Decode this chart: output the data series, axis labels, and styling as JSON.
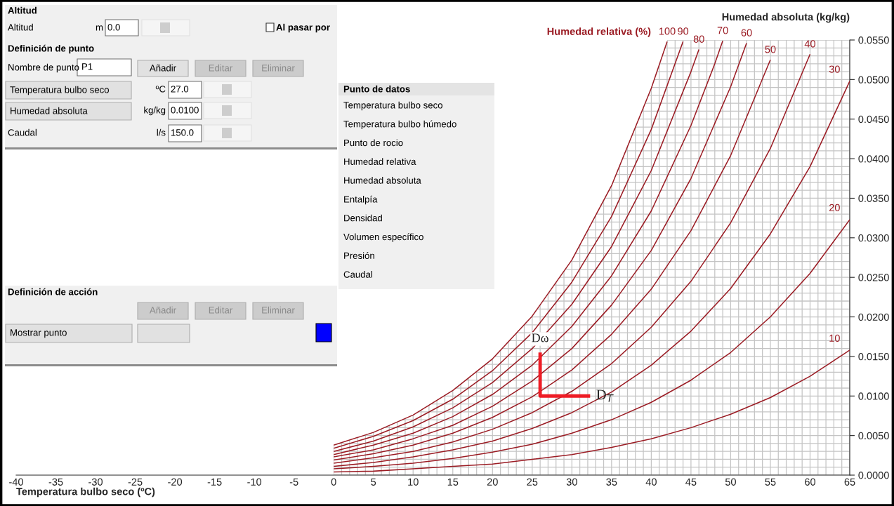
{
  "chart_data": {
    "type": "line",
    "xlabel": "Temperatura bulbo seco (ºC)",
    "ylabel": "Humedad absoluta (kg/kg)",
    "xlim": [
      -40,
      65
    ],
    "xticks": [
      -40,
      -35,
      -30,
      -25,
      -20,
      -15,
      -10,
      -5,
      0,
      5,
      10,
      15,
      20,
      25,
      30,
      35,
      40,
      45,
      50,
      55,
      60,
      65
    ],
    "ylim": [
      0,
      0.055
    ],
    "yticks": [
      {
        "value": 0,
        "label": "0.0000"
      },
      {
        "value": 0.005,
        "label": "0.0050"
      },
      {
        "value": 0.01,
        "label": "0.0100"
      },
      {
        "value": 0.015,
        "label": "0.0150"
      },
      {
        "value": 0.02,
        "label": "0.0200"
      },
      {
        "value": 0.025,
        "label": "0.0250"
      },
      {
        "value": 0.03,
        "label": "0.0300"
      },
      {
        "value": 0.035,
        "label": "0.0350"
      },
      {
        "value": 0.04,
        "label": "0.0400"
      },
      {
        "value": 0.045,
        "label": "0.0450"
      },
      {
        "value": 0.05,
        "label": "0.0500"
      },
      {
        "value": 0.055,
        "label": "0.0550"
      }
    ],
    "grid": true,
    "series": [
      {
        "name": "100",
        "color": "#9b1c24",
        "x": [
          0,
          5,
          10,
          15,
          20,
          25,
          30,
          35,
          40,
          42
        ],
        "values": [
          0.0038,
          0.0054,
          0.0076,
          0.0107,
          0.0147,
          0.0201,
          0.0272,
          0.0366,
          0.0489,
          0.0548
        ]
      },
      {
        "name": "90",
        "color": "#9b1c24",
        "x": [
          0,
          5,
          10,
          15,
          20,
          25,
          30,
          35,
          40,
          44
        ],
        "values": [
          0.0034,
          0.0049,
          0.0069,
          0.0096,
          0.0132,
          0.018,
          0.0244,
          0.0327,
          0.0437,
          0.0548
        ]
      },
      {
        "name": "80",
        "color": "#9b1c24",
        "x": [
          0,
          5,
          10,
          15,
          20,
          25,
          30,
          35,
          40,
          45,
          46
        ],
        "values": [
          0.003,
          0.0043,
          0.0061,
          0.0085,
          0.0117,
          0.016,
          0.0216,
          0.0289,
          0.0385,
          0.051,
          0.0538
        ]
      },
      {
        "name": "70",
        "color": "#9b1c24",
        "x": [
          0,
          5,
          10,
          15,
          20,
          25,
          30,
          35,
          40,
          45,
          48,
          49
        ],
        "values": [
          0.0026,
          0.0038,
          0.0053,
          0.0074,
          0.0102,
          0.0139,
          0.0188,
          0.0252,
          0.0334,
          0.0442,
          0.052,
          0.0549
        ]
      },
      {
        "name": "60",
        "color": "#9b1c24",
        "x": [
          0,
          5,
          10,
          15,
          20,
          25,
          30,
          35,
          40,
          45,
          50,
          52
        ],
        "values": [
          0.0023,
          0.0032,
          0.0046,
          0.0063,
          0.0087,
          0.0119,
          0.016,
          0.0215,
          0.0284,
          0.0375,
          0.0491,
          0.0546
        ]
      },
      {
        "name": "50",
        "color": "#9b1c24",
        "x": [
          0,
          5,
          10,
          15,
          20,
          25,
          30,
          35,
          40,
          45,
          50,
          55
        ],
        "values": [
          0.0019,
          0.0027,
          0.0038,
          0.0053,
          0.0073,
          0.0099,
          0.0133,
          0.0178,
          0.0235,
          0.0309,
          0.0404,
          0.0525
        ]
      },
      {
        "name": "40",
        "color": "#9b1c24",
        "x": [
          0,
          5,
          10,
          15,
          20,
          25,
          30,
          35,
          40,
          45,
          50,
          55,
          60
        ],
        "values": [
          0.0015,
          0.0022,
          0.003,
          0.0042,
          0.0058,
          0.0079,
          0.0106,
          0.0141,
          0.0187,
          0.0245,
          0.0319,
          0.0413,
          0.0532
        ]
      },
      {
        "name": "30",
        "color": "#9b1c24",
        "x": [
          0,
          5,
          10,
          15,
          20,
          25,
          30,
          35,
          40,
          45,
          50,
          55,
          60,
          65
        ],
        "values": [
          0.0011,
          0.0016,
          0.0023,
          0.0032,
          0.0043,
          0.0059,
          0.0079,
          0.0105,
          0.0139,
          0.0182,
          0.0236,
          0.0305,
          0.039,
          0.0498
        ]
      },
      {
        "name": "20",
        "color": "#9b1c24",
        "x": [
          0,
          5,
          10,
          15,
          20,
          25,
          30,
          35,
          40,
          45,
          50,
          55,
          60,
          65
        ],
        "values": [
          0.0008,
          0.0011,
          0.0015,
          0.0021,
          0.0029,
          0.0039,
          0.0053,
          0.007,
          0.0092,
          0.012,
          0.0155,
          0.02,
          0.0255,
          0.0323
        ]
      },
      {
        "name": "10",
        "color": "#9b1c24",
        "x": [
          0,
          5,
          10,
          15,
          20,
          25,
          30,
          35,
          40,
          45,
          50,
          55,
          60,
          65
        ],
        "values": [
          0.0004,
          0.0005,
          0.0008,
          0.0011,
          0.0014,
          0.002,
          0.0026,
          0.0035,
          0.0046,
          0.006,
          0.0077,
          0.0098,
          0.0125,
          0.0158
        ]
      },
      {
        "color": "#ee1c25",
        "x": [
          26,
          26,
          32.3
        ],
        "values": [
          0.0155,
          0.01,
          0.01
        ]
      }
    ],
    "annotations": [
      "Altitud",
      "Altitud",
      "m",
      "0.0",
      "Al pasar por",
      "Definición de punto",
      "Nombre de punto",
      "P1",
      "Añadir",
      "Editar",
      "Eliminar",
      "Temperatura bulbo seco",
      "ºC",
      "27.0",
      "Humedad absoluta",
      "kg/kg",
      "0.0100",
      "Caudal",
      "l/s",
      "150.0",
      "Definición de acción",
      "Añadir",
      "Editar",
      "Eliminar",
      "Mostrar punto",
      "Punto de datos",
      "Temperatura bulbo seco",
      "Temperatura bulbo húmedo",
      "Punto de rocio",
      "Humedad relativa",
      "Humedad absoluta",
      "Entalpía",
      "Densidad",
      "Volumen específico",
      "Presión",
      "Caudal",
      "Humedad relativa (%)",
      {
        "text": "Dω",
        "x": 26,
        "y": 0.0155
      },
      {
        "text": "D$_{T}$",
        "x": 32.3,
        "y": 0.01
      }
    ]
  }
}
